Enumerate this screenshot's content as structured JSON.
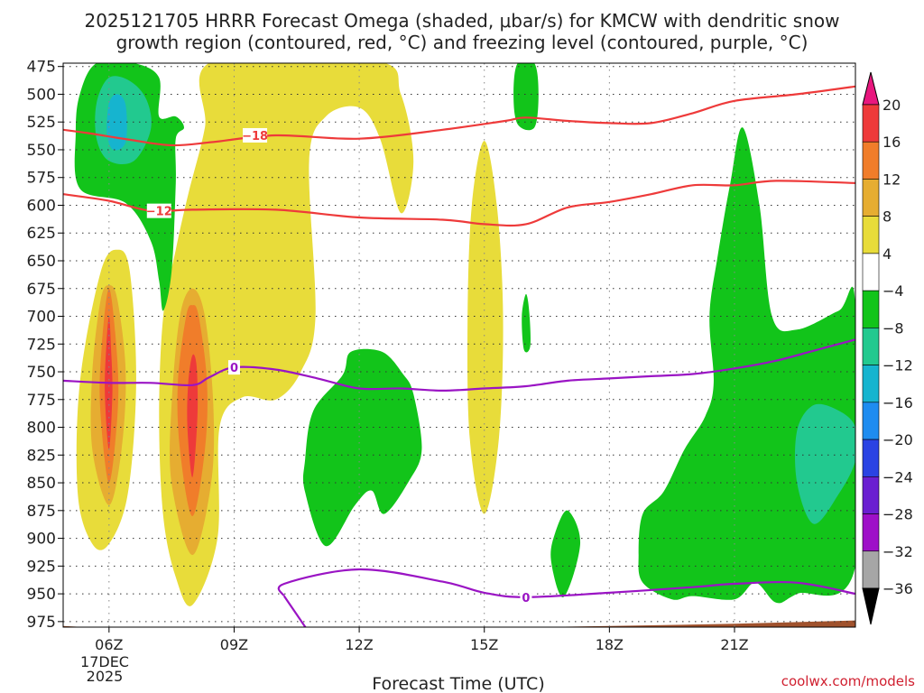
{
  "chart_data": {
    "type": "contour",
    "title_line1": "2025121705 HRRR Forecast Omega (shaded, μbar/s) for KMCW with dendritic snow",
    "title_line2": "growth region (contoured, red, °C) and freezing level (contoured, purple, °C)",
    "xlabel": "Forecast Time (UTC)",
    "credit": "coolwx.com/models",
    "x_range_hours": [
      4.9,
      23.9
    ],
    "y_range_hpa": [
      980,
      472
    ],
    "x_ticks": [
      {
        "hour": 6,
        "label": "06Z"
      },
      {
        "hour": 9,
        "label": "09Z"
      },
      {
        "hour": 12,
        "label": "12Z"
      },
      {
        "hour": 15,
        "label": "15Z"
      },
      {
        "hour": 18,
        "label": "18Z"
      },
      {
        "hour": 21,
        "label": "21Z"
      }
    ],
    "date_label": [
      "17DEC",
      "2025"
    ],
    "y_ticks": [
      475,
      500,
      525,
      550,
      575,
      600,
      625,
      650,
      675,
      700,
      725,
      750,
      775,
      800,
      825,
      850,
      875,
      900,
      925,
      950,
      975
    ],
    "colorbar": {
      "labels": [
        "20",
        "16",
        "12",
        "8",
        "4",
        "−4",
        "−8",
        "−12",
        "−16",
        "−20",
        "−24",
        "−28",
        "−32",
        "−36"
      ],
      "colors": [
        "#e8177e",
        "#ee3a3a",
        "#f07d2a",
        "#e6ad31",
        "#e8dc3a",
        "#ffffff",
        "#12c41a",
        "#22c98f",
        "#16b4cf",
        "#1e8cf0",
        "#2a43e3",
        "#6a1fd1",
        "#9e10c8",
        "#a6a6a6",
        "#000000"
      ]
    },
    "dgz_contours": [
      {
        "label": "−18",
        "label_hour": 9.5,
        "points": [
          [
            4.9,
            532
          ],
          [
            5.5,
            535
          ],
          [
            6.5,
            541
          ],
          [
            7.5,
            546
          ],
          [
            8.5,
            543
          ],
          [
            10,
            537
          ],
          [
            12,
            540
          ],
          [
            14,
            532
          ],
          [
            15.5,
            524
          ],
          [
            16,
            521
          ],
          [
            17,
            524
          ],
          [
            18,
            526
          ],
          [
            19,
            526
          ],
          [
            20,
            517
          ],
          [
            21,
            506
          ],
          [
            22.5,
            500
          ],
          [
            23.9,
            493
          ]
        ]
      },
      {
        "label": "−12",
        "label_hour": 7.2,
        "points": [
          [
            4.9,
            590
          ],
          [
            6,
            596
          ],
          [
            7,
            605
          ],
          [
            8,
            604
          ],
          [
            10,
            604
          ],
          [
            12,
            611
          ],
          [
            14,
            613
          ],
          [
            15,
            617
          ],
          [
            16,
            617
          ],
          [
            17,
            602
          ],
          [
            18,
            597
          ],
          [
            19,
            590
          ],
          [
            20,
            582
          ],
          [
            21,
            582
          ],
          [
            22,
            578
          ],
          [
            23.9,
            580
          ]
        ]
      }
    ],
    "freezing_level_contours": [
      {
        "label": "0",
        "label_hour": 9.0,
        "points": [
          [
            4.9,
            758
          ],
          [
            6,
            760
          ],
          [
            7,
            760
          ],
          [
            8,
            762
          ],
          [
            8.4,
            755
          ],
          [
            9,
            746
          ],
          [
            10,
            748
          ],
          [
            11,
            756
          ],
          [
            12,
            765
          ],
          [
            13,
            765
          ],
          [
            14,
            767
          ],
          [
            15,
            765
          ],
          [
            16,
            763
          ],
          [
            17,
            758
          ],
          [
            18,
            756
          ],
          [
            19,
            754
          ],
          [
            20,
            752
          ],
          [
            21,
            747
          ],
          [
            22,
            740
          ],
          [
            23,
            730
          ],
          [
            23.9,
            721
          ]
        ]
      },
      {
        "label": "0",
        "label_hour": 16.0,
        "points": [
          [
            10.2,
            952
          ],
          [
            10.2,
            941
          ],
          [
            12,
            928
          ],
          [
            14,
            939
          ],
          [
            15,
            949
          ],
          [
            16,
            953
          ],
          [
            18,
            949
          ],
          [
            20,
            944
          ],
          [
            21,
            941
          ],
          [
            22.5,
            940
          ],
          [
            23.9,
            950
          ]
        ]
      },
      {
        "label": "",
        "label_hour": null,
        "points": [
          [
            10.2,
            952
          ],
          [
            10.8,
            985
          ]
        ]
      }
    ],
    "omega_regions": [
      {
        "level": "4",
        "color": "#e8dc3a",
        "pts": [
          [
            6,
            905
          ],
          [
            6.45,
            860
          ],
          [
            6.65,
            760
          ],
          [
            6.5,
            660
          ],
          [
            6.2,
            640
          ],
          [
            5.8,
            660
          ],
          [
            5.3,
            760
          ],
          [
            5.25,
            860
          ],
          [
            5.6,
            905
          ]
        ]
      },
      {
        "level": "8",
        "color": "#e6ad31",
        "pts": [
          [
            6,
            870
          ],
          [
            6.3,
            820
          ],
          [
            6.4,
            750
          ],
          [
            6.2,
            685
          ],
          [
            6,
            672
          ],
          [
            5.8,
            685
          ],
          [
            5.6,
            750
          ],
          [
            5.6,
            820
          ]
        ]
      },
      {
        "level": "12",
        "color": "#f07d2a",
        "pts": [
          [
            6,
            850
          ],
          [
            6.2,
            790
          ],
          [
            6.2,
            740
          ],
          [
            6,
            675
          ],
          [
            5.8,
            740
          ],
          [
            5.8,
            790
          ]
        ]
      },
      {
        "level": "16",
        "color": "#ee3a3a",
        "pts": [
          [
            6,
            820
          ],
          [
            6.08,
            770
          ],
          [
            6.05,
            730
          ],
          [
            6,
            700
          ],
          [
            5.93,
            730
          ],
          [
            5.9,
            770
          ]
        ]
      },
      {
        "level": "4",
        "color": "#e8dc3a",
        "pts": [
          [
            8,
            960
          ],
          [
            8.6,
            900
          ],
          [
            8.65,
            800
          ],
          [
            9.2,
            773
          ],
          [
            10,
            775
          ],
          [
            10.6,
            750
          ],
          [
            10.95,
            700
          ],
          [
            10.8,
            560
          ],
          [
            11.2,
            520
          ],
          [
            12,
            512
          ],
          [
            12.5,
            540
          ],
          [
            13,
            607
          ],
          [
            13.3,
            560
          ],
          [
            13,
            500
          ],
          [
            12.4,
            470
          ],
          [
            8.5,
            470
          ],
          [
            8.3,
            530
          ],
          [
            7.9,
            590
          ],
          [
            7.6,
            640
          ],
          [
            7.3,
            700
          ],
          [
            7.2,
            790
          ],
          [
            7.3,
            880
          ],
          [
            7.6,
            935
          ]
        ]
      },
      {
        "level": "8",
        "color": "#e6ad31",
        "pts": [
          [
            8,
            915
          ],
          [
            8.45,
            850
          ],
          [
            8.5,
            780
          ],
          [
            8.3,
            700
          ],
          [
            8,
            675
          ],
          [
            7.7,
            700
          ],
          [
            7.5,
            780
          ],
          [
            7.5,
            850
          ]
        ]
      },
      {
        "level": "12",
        "color": "#f07d2a",
        "pts": [
          [
            8,
            880
          ],
          [
            8.3,
            820
          ],
          [
            8.35,
            760
          ],
          [
            8.15,
            700
          ],
          [
            8,
            690
          ],
          [
            7.85,
            700
          ],
          [
            7.65,
            760
          ],
          [
            7.7,
            820
          ]
        ]
      },
      {
        "level": "16",
        "color": "#ee3a3a",
        "pts": [
          [
            8,
            845
          ],
          [
            8.12,
            790
          ],
          [
            8.1,
            745
          ],
          [
            8,
            735
          ],
          [
            7.9,
            760
          ],
          [
            7.88,
            800
          ]
        ]
      },
      {
        "level": "4",
        "color": "#e8dc3a",
        "pts": [
          [
            15,
            878
          ],
          [
            15.35,
            810
          ],
          [
            15.45,
            700
          ],
          [
            15.3,
            600
          ],
          [
            15,
            542
          ],
          [
            14.7,
            600
          ],
          [
            14.6,
            700
          ],
          [
            14.65,
            810
          ]
        ]
      },
      {
        "level": "-4",
        "color": "#12c41a",
        "pts": [
          [
            5.3,
            585
          ],
          [
            6.4,
            598
          ],
          [
            7,
            632
          ],
          [
            7.2,
            668
          ],
          [
            7.3,
            695
          ],
          [
            7.5,
            660
          ],
          [
            7.6,
            580
          ],
          [
            7.6,
            540
          ],
          [
            7.8,
            530
          ],
          [
            7.6,
            520
          ],
          [
            7.2,
            520
          ],
          [
            7.2,
            485
          ],
          [
            6.6,
            472
          ],
          [
            5.7,
            472
          ],
          [
            5.3,
            500
          ],
          [
            5.2,
            535
          ]
        ]
      },
      {
        "level": "-8",
        "color": "#22c98f",
        "pts": [
          [
            6,
            560
          ],
          [
            6.6,
            560
          ],
          [
            7,
            532
          ],
          [
            6.9,
            505
          ],
          [
            6.5,
            488
          ],
          [
            6,
            485
          ],
          [
            5.7,
            508
          ],
          [
            5.7,
            540
          ]
        ]
      },
      {
        "level": "-12",
        "color": "#16b4cf",
        "pts": [
          [
            6.1,
            550
          ],
          [
            6.4,
            543
          ],
          [
            6.4,
            510
          ],
          [
            6.2,
            500
          ],
          [
            6,
            508
          ],
          [
            5.95,
            535
          ]
        ]
      },
      {
        "level": "-4",
        "color": "#12c41a",
        "pts": [
          [
            10.7,
            858
          ],
          [
            11.2,
            907
          ],
          [
            11.9,
            870
          ],
          [
            12.3,
            857
          ],
          [
            12.6,
            878
          ],
          [
            13.2,
            848
          ],
          [
            13.5,
            820
          ],
          [
            13.3,
            770
          ],
          [
            13.05,
            752
          ],
          [
            12.55,
            732
          ],
          [
            11.8,
            732
          ],
          [
            11.6,
            753
          ],
          [
            10.9,
            785
          ],
          [
            10.7,
            830
          ]
        ]
      },
      {
        "level": "-4",
        "color": "#12c41a",
        "pts": [
          [
            15.8,
            527
          ],
          [
            16.2,
            530
          ],
          [
            16.3,
            500
          ],
          [
            16.2,
            472
          ],
          [
            15.8,
            472
          ],
          [
            15.7,
            500
          ]
        ]
      },
      {
        "level": "-4",
        "color": "#12c41a",
        "pts": [
          [
            15.95,
            730
          ],
          [
            16.1,
            727
          ],
          [
            16.08,
            697
          ],
          [
            16,
            680
          ],
          [
            15.9,
            700
          ]
        ]
      },
      {
        "level": "-4",
        "color": "#12c41a",
        "pts": [
          [
            16.9,
            953
          ],
          [
            17.3,
            905
          ],
          [
            17,
            875
          ],
          [
            16.7,
            895
          ],
          [
            16.6,
            920
          ]
        ]
      },
      {
        "level": "-4",
        "color": "#12c41a",
        "pts": [
          [
            19.5,
            955
          ],
          [
            20,
            952
          ],
          [
            21,
            955
          ],
          [
            21.5,
            940
          ],
          [
            22,
            958
          ],
          [
            22.5,
            950
          ],
          [
            23.9,
            925
          ],
          [
            23.9,
            690
          ],
          [
            23.5,
            695
          ],
          [
            22.5,
            712
          ],
          [
            21.9,
            700
          ],
          [
            21.6,
            600
          ],
          [
            21.2,
            530
          ],
          [
            20.9,
            580
          ],
          [
            20.6,
            645
          ],
          [
            20.4,
            700
          ],
          [
            20.5,
            760
          ],
          [
            20.3,
            790
          ],
          [
            19.8,
            820
          ],
          [
            19.3,
            858
          ],
          [
            18.8,
            878
          ],
          [
            18.7,
            915
          ],
          [
            18.8,
            940
          ]
        ]
      },
      {
        "level": "-8",
        "color": "#22c98f",
        "pts": [
          [
            22.9,
            887
          ],
          [
            23.5,
            860
          ],
          [
            23.9,
            830
          ],
          [
            23.9,
            800
          ],
          [
            23.5,
            785
          ],
          [
            22.9,
            780
          ],
          [
            22.5,
            803
          ],
          [
            22.5,
            850
          ]
        ]
      }
    ],
    "terrain": {
      "color": "#a0522d",
      "pts": [
        [
          4.9,
          979
        ],
        [
          6,
          981
        ],
        [
          12,
          982
        ],
        [
          18,
          979
        ],
        [
          21,
          977
        ],
        [
          23.9,
          974
        ],
        [
          23.9,
          985
        ],
        [
          4.9,
          985
        ]
      ]
    }
  }
}
